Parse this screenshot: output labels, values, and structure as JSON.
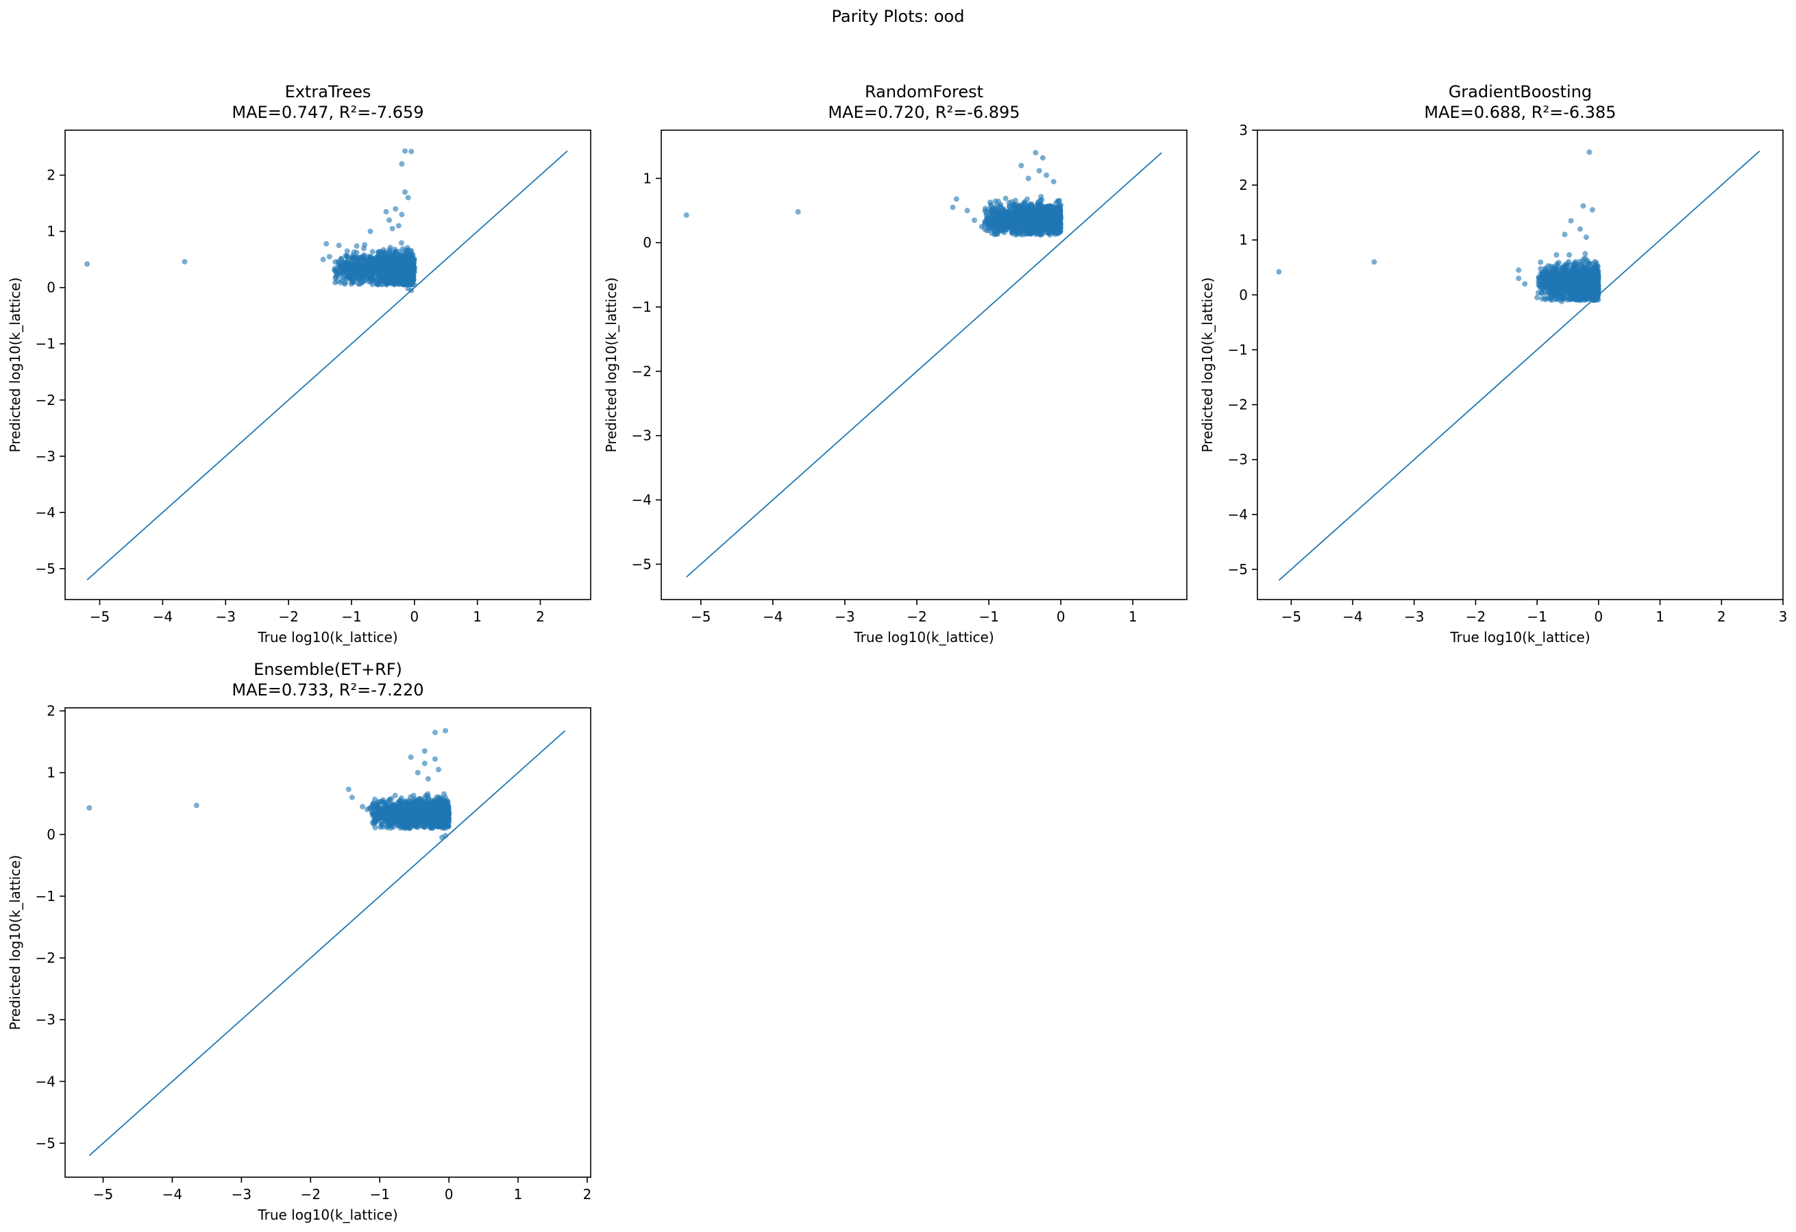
{
  "figure": {
    "suptitle": "Parity Plots: ood"
  },
  "chart_data": [
    {
      "type": "scatter",
      "title": "ExtraTrees",
      "subtitle": "MAE=0.747, R²=-7.659",
      "xlabel": "True log10(k_lattice)",
      "ylabel": "Predicted log10(k_lattice)",
      "xlim": [
        -5.55,
        2.8
      ],
      "ylim": [
        -5.55,
        2.8
      ],
      "xticks": [
        -5,
        -4,
        -3,
        -2,
        -1,
        0,
        1,
        2
      ],
      "yticks": [
        -5,
        -4,
        -3,
        -2,
        -1,
        0,
        1,
        2
      ],
      "grid": false,
      "colors": {
        "points": "#1f77b4",
        "parity_line": "#1f77b4"
      },
      "parity_line": {
        "from": -5.2,
        "to": 2.43
      },
      "cluster": {
        "x_range": [
          -1.3,
          0.0
        ],
        "y_range": [
          0.05,
          0.8
        ]
      },
      "outliers": [
        [
          -5.2,
          0.42
        ],
        [
          -3.65,
          0.46
        ],
        [
          -0.15,
          2.43
        ],
        [
          -0.05,
          2.42
        ],
        [
          -0.2,
          2.2
        ],
        [
          -0.15,
          1.7
        ],
        [
          -0.1,
          1.6
        ],
        [
          -0.3,
          1.4
        ],
        [
          -0.45,
          1.35
        ],
        [
          -0.2,
          1.3
        ],
        [
          -0.4,
          1.2
        ],
        [
          -0.25,
          1.1
        ],
        [
          -0.35,
          1.05
        ],
        [
          -0.7,
          1.0
        ],
        [
          -1.2,
          0.75
        ],
        [
          -1.4,
          0.78
        ],
        [
          -1.35,
          0.55
        ],
        [
          -1.45,
          0.5
        ],
        [
          -0.05,
          -0.05
        ],
        [
          -0.1,
          -0.02
        ]
      ]
    },
    {
      "type": "scatter",
      "title": "RandomForest",
      "subtitle": "MAE=0.720, R²=-6.895",
      "xlabel": "True log10(k_lattice)",
      "ylabel": "Predicted log10(k_lattice)",
      "xlim": [
        -5.55,
        1.75
      ],
      "ylim": [
        -5.55,
        1.75
      ],
      "xticks": [
        -5,
        -4,
        -3,
        -2,
        -1,
        0,
        1
      ],
      "yticks": [
        -5,
        -4,
        -3,
        -2,
        -1,
        0,
        1
      ],
      "grid": false,
      "colors": {
        "points": "#1f77b4",
        "parity_line": "#1f77b4"
      },
      "parity_line": {
        "from": -5.2,
        "to": 1.4
      },
      "cluster": {
        "x_range": [
          -1.1,
          0.0
        ],
        "y_range": [
          0.12,
          0.75
        ]
      },
      "outliers": [
        [
          -5.2,
          0.43
        ],
        [
          -3.65,
          0.48
        ],
        [
          -0.35,
          1.4
        ],
        [
          -0.25,
          1.32
        ],
        [
          -0.55,
          1.2
        ],
        [
          -0.3,
          1.12
        ],
        [
          -0.2,
          1.05
        ],
        [
          -0.45,
          1.0
        ],
        [
          -0.1,
          0.95
        ],
        [
          -1.45,
          0.68
        ],
        [
          -1.5,
          0.55
        ],
        [
          -1.3,
          0.5
        ],
        [
          -1.2,
          0.35
        ],
        [
          -1.1,
          0.25
        ],
        [
          -0.05,
          0.15
        ],
        [
          -0.2,
          0.18
        ]
      ]
    },
    {
      "type": "scatter",
      "title": "GradientBoosting",
      "subtitle": "MAE=0.688, R²=-6.385",
      "xlabel": "True log10(k_lattice)",
      "ylabel": "Predicted log10(k_lattice)",
      "xlim": [
        -5.55,
        3.0
      ],
      "ylim": [
        -5.55,
        3.0
      ],
      "xticks": [
        -5,
        -4,
        -3,
        -2,
        -1,
        0,
        1,
        2,
        3
      ],
      "yticks": [
        -5,
        -4,
        -3,
        -2,
        -1,
        0,
        1,
        2,
        3
      ],
      "grid": false,
      "colors": {
        "points": "#1f77b4",
        "parity_line": "#1f77b4"
      },
      "parity_line": {
        "from": -5.2,
        "to": 2.62
      },
      "cluster": {
        "x_range": [
          -1.0,
          0.0
        ],
        "y_range": [
          -0.1,
          0.75
        ]
      },
      "outliers": [
        [
          -5.2,
          0.42
        ],
        [
          -3.65,
          0.6
        ],
        [
          -0.15,
          2.6
        ],
        [
          -0.25,
          1.62
        ],
        [
          -0.1,
          1.55
        ],
        [
          -0.45,
          1.35
        ],
        [
          -0.3,
          1.2
        ],
        [
          -0.55,
          1.1
        ],
        [
          -0.2,
          1.05
        ],
        [
          -1.3,
          0.45
        ],
        [
          -1.3,
          0.3
        ],
        [
          -1.2,
          0.2
        ],
        [
          -1.0,
          -0.05
        ],
        [
          -0.6,
          -0.12
        ],
        [
          -0.3,
          -0.1
        ]
      ]
    },
    {
      "type": "scatter",
      "title": "Ensemble(ET+RF)",
      "subtitle": "MAE=0.733, R²=-7.220",
      "xlabel": "True log10(k_lattice)",
      "ylabel": "Predicted log10(k_lattice)",
      "xlim": [
        -5.55,
        2.05
      ],
      "ylim": [
        -5.55,
        2.05
      ],
      "xticks": [
        -5,
        -4,
        -3,
        -2,
        -1,
        0,
        1,
        2
      ],
      "yticks": [
        -5,
        -4,
        -3,
        -2,
        -1,
        0,
        1,
        2
      ],
      "grid": false,
      "colors": {
        "points": "#1f77b4",
        "parity_line": "#1f77b4"
      },
      "parity_line": {
        "from": -5.2,
        "to": 1.68
      },
      "cluster": {
        "x_range": [
          -1.2,
          0.0
        ],
        "y_range": [
          0.1,
          0.7
        ]
      },
      "outliers": [
        [
          -5.2,
          0.43
        ],
        [
          -3.65,
          0.47
        ],
        [
          -0.05,
          1.68
        ],
        [
          -0.2,
          1.65
        ],
        [
          -0.35,
          1.35
        ],
        [
          -0.2,
          1.22
        ],
        [
          -0.55,
          1.25
        ],
        [
          -0.35,
          1.15
        ],
        [
          -0.15,
          1.05
        ],
        [
          -0.45,
          1.0
        ],
        [
          -0.3,
          0.9
        ],
        [
          -1.45,
          0.73
        ],
        [
          -1.4,
          0.6
        ],
        [
          -1.25,
          0.45
        ],
        [
          -1.1,
          0.35
        ],
        [
          -0.1,
          -0.05
        ],
        [
          -0.05,
          -0.02
        ]
      ]
    }
  ]
}
